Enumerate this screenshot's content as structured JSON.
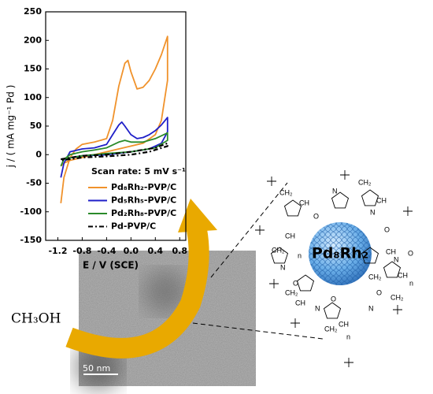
{
  "chart_data": {
    "type": "line",
    "x_label": "E / V (SCE)",
    "y_label": "j / ( mA mg⁻¹ Pd )",
    "annotation": "Scan rate: 5 mV s⁻¹",
    "xlim": [
      -1.4,
      0.9
    ],
    "xticks": [
      -1.2,
      -0.8,
      -0.4,
      {
        "value": 0,
        "label": "0.0"
      },
      0.4,
      0.8
    ],
    "ylim": [
      -150,
      250
    ],
    "yticks": [
      -150,
      -100,
      -50,
      0,
      50,
      100,
      150,
      200,
      250
    ],
    "series": [
      {
        "name": "Pd₈Rh₂-PVP/C",
        "color": "#f0922b",
        "x": [
          -1.15,
          -1.1,
          -1.0,
          -0.9,
          -0.8,
          -0.6,
          -0.4,
          -0.3,
          -0.2,
          -0.1,
          -0.05,
          0.0,
          0.1,
          0.2,
          0.3,
          0.4,
          0.5,
          0.6,
          0.6,
          0.5,
          0.4,
          0.2,
          0.0,
          -0.2,
          -0.4,
          -0.6,
          -0.8,
          -1.0,
          -1.1,
          -1.15
        ],
        "values": [
          -85,
          -40,
          -5,
          10,
          18,
          22,
          28,
          60,
          120,
          160,
          165,
          145,
          115,
          118,
          130,
          150,
          175,
          207,
          130,
          60,
          35,
          20,
          15,
          10,
          5,
          0,
          -5,
          -10,
          -15,
          -20
        ]
      },
      {
        "name": "Pd₅Rh₅-PVP/C",
        "color": "#1f1fc8",
        "x": [
          -1.15,
          -1.1,
          -1.0,
          -0.8,
          -0.6,
          -0.4,
          -0.3,
          -0.2,
          -0.15,
          -0.1,
          0.0,
          0.1,
          0.2,
          0.3,
          0.4,
          0.5,
          0.6,
          0.6,
          0.5,
          0.3,
          0.0,
          -0.4,
          -0.8,
          -1.15
        ],
        "values": [
          -40,
          -15,
          5,
          10,
          12,
          18,
          35,
          52,
          57,
          50,
          35,
          28,
          30,
          35,
          42,
          52,
          65,
          40,
          20,
          10,
          5,
          0,
          -2,
          -8
        ]
      },
      {
        "name": "Pd₂Rh₈-PVP/C",
        "color": "#2a8a2a",
        "x": [
          -1.15,
          -1.1,
          -1.0,
          -0.8,
          -0.6,
          -0.4,
          -0.2,
          -0.1,
          0.0,
          0.2,
          0.4,
          0.6,
          0.6,
          0.4,
          0.0,
          -0.4,
          -0.8,
          -1.15
        ],
        "values": [
          -20,
          -8,
          0,
          5,
          8,
          12,
          22,
          25,
          22,
          22,
          28,
          38,
          25,
          12,
          5,
          2,
          -2,
          -8
        ]
      },
      {
        "name": "Pd-PVP/C",
        "color": "#000000",
        "dash": true,
        "x": [
          -1.15,
          -0.8,
          -0.4,
          0.0,
          0.4,
          0.6,
          0.6,
          0.3,
          0.0,
          -0.4,
          -0.8,
          -1.15
        ],
        "values": [
          -8,
          -2,
          0,
          5,
          12,
          20,
          15,
          5,
          0,
          -3,
          -5,
          -10
        ]
      }
    ]
  },
  "reactant": "CH₃OH",
  "tem_scale_bar": "50 nm",
  "particle_label": "Pd₈Rh₂",
  "structure_labels": [
    "CH₂",
    "CH",
    "N",
    "O",
    "CH₂",
    "CH",
    "N",
    "O",
    "CH₂",
    "CH",
    "n",
    "N",
    "O",
    "CH",
    "CH₂",
    "N",
    "O",
    "CH₂",
    "CH",
    "n",
    "N",
    "O",
    "CH₂",
    "CH",
    "N",
    "O",
    "n",
    "CH₂",
    "CH"
  ]
}
